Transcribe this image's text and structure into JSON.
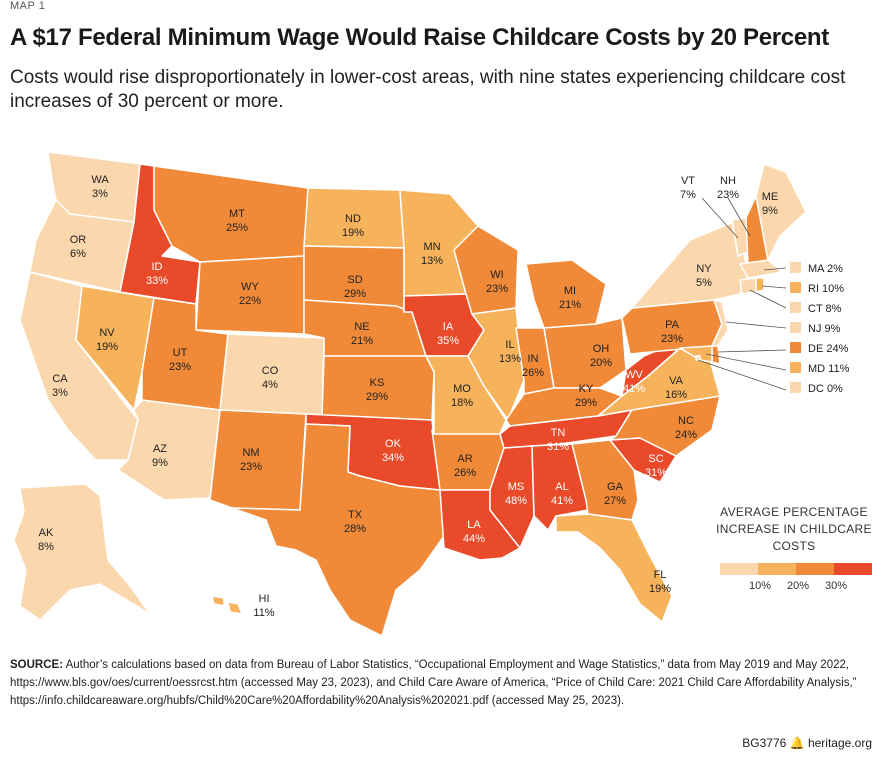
{
  "kicker": "MAP 1",
  "title": "A $17 Federal Minimum Wage Would Raise Childcare Costs by 20 Percent",
  "subtitle": "Costs would rise disproportionately in lower-cost areas, with nine states experiencing childcare cost increases of 30 percent or more.",
  "colors": {
    "bin_under_10": "#fbd7ad",
    "bin_10_20": "#f7b35c",
    "bin_20_30": "#f08a38",
    "bin_30_plus": "#e84a2a",
    "border": "#ffffff"
  },
  "states": {
    "WA": {
      "abbr": "WA",
      "value": "3%"
    },
    "OR": {
      "abbr": "OR",
      "value": "6%"
    },
    "CA": {
      "abbr": "CA",
      "value": "3%"
    },
    "ID": {
      "abbr": "ID",
      "value": "33%"
    },
    "NV": {
      "abbr": "NV",
      "value": "19%"
    },
    "MT": {
      "abbr": "MT",
      "value": "25%"
    },
    "WY": {
      "abbr": "WY",
      "value": "22%"
    },
    "UT": {
      "abbr": "UT",
      "value": "23%"
    },
    "AZ": {
      "abbr": "AZ",
      "value": "9%"
    },
    "CO": {
      "abbr": "CO",
      "value": "4%"
    },
    "NM": {
      "abbr": "NM",
      "value": "23%"
    },
    "ND": {
      "abbr": "ND",
      "value": "19%"
    },
    "SD": {
      "abbr": "SD",
      "value": "29%"
    },
    "NE": {
      "abbr": "NE",
      "value": "21%"
    },
    "KS": {
      "abbr": "KS",
      "value": "29%"
    },
    "OK": {
      "abbr": "OK",
      "value": "34%"
    },
    "TX": {
      "abbr": "TX",
      "value": "28%"
    },
    "MN": {
      "abbr": "MN",
      "value": "13%"
    },
    "IA": {
      "abbr": "IA",
      "value": "35%"
    },
    "MO": {
      "abbr": "MO",
      "value": "18%"
    },
    "AR": {
      "abbr": "AR",
      "value": "26%"
    },
    "LA": {
      "abbr": "LA",
      "value": "44%"
    },
    "WI": {
      "abbr": "WI",
      "value": "23%"
    },
    "IL": {
      "abbr": "IL",
      "value": "13%"
    },
    "MI": {
      "abbr": "MI",
      "value": "21%"
    },
    "IN": {
      "abbr": "IN",
      "value": "26%"
    },
    "OH": {
      "abbr": "OH",
      "value": "20%"
    },
    "KY": {
      "abbr": "KY",
      "value": "29%"
    },
    "TN": {
      "abbr": "TN",
      "value": "31%"
    },
    "MS": {
      "abbr": "MS",
      "value": "48%"
    },
    "AL": {
      "abbr": "AL",
      "value": "41%"
    },
    "GA": {
      "abbr": "GA",
      "value": "27%"
    },
    "FL": {
      "abbr": "FL",
      "value": "19%"
    },
    "SC": {
      "abbr": "SC",
      "value": "31%"
    },
    "NC": {
      "abbr": "NC",
      "value": "24%"
    },
    "VA": {
      "abbr": "VA",
      "value": "16%"
    },
    "WV": {
      "abbr": "WV",
      "value": "41%"
    },
    "PA": {
      "abbr": "PA",
      "value": "23%"
    },
    "NY": {
      "abbr": "NY",
      "value": "5%"
    },
    "VT": {
      "abbr": "VT",
      "value": "7%"
    },
    "NH": {
      "abbr": "NH",
      "value": "23%"
    },
    "ME": {
      "abbr": "ME",
      "value": "9%"
    },
    "AK": {
      "abbr": "AK",
      "value": "8%"
    },
    "HI": {
      "abbr": "HI",
      "value": "11%"
    }
  },
  "small_states": [
    {
      "label": "MA 2%"
    },
    {
      "label": "RI 10%"
    },
    {
      "label": "CT 8%"
    },
    {
      "label": "NJ 9%"
    },
    {
      "label": "DE 24%"
    },
    {
      "label": "MD 11%"
    },
    {
      "label": "DC 0%"
    }
  ],
  "legend": {
    "title": "AVERAGE PERCENTAGE INCREASE IN CHILDCARE COSTS",
    "ticks": [
      "10%",
      "20%",
      "30%"
    ]
  },
  "source": {
    "label": "SOURCE:",
    "text": "Author’s calculations based on data from Bureau of Labor Statistics, “Occupational Employment and Wage Statistics,” data from May 2019 and May 2022, https://www.bls.gov/oes/current/oessrcst.htm (accessed May 23, 2023), and Child Care Aware of America, “Price of Child Care: 2021 Child Care Affordability Analysis,” https://info.childcareaware.org/hubfs/Child%20Care%20Affordability%20Analysis%202021.pdf (accessed May 25, 2023)."
  },
  "footer": {
    "code": "BG3776",
    "icon": "bell-logo-icon",
    "site": "heritage.org"
  }
}
